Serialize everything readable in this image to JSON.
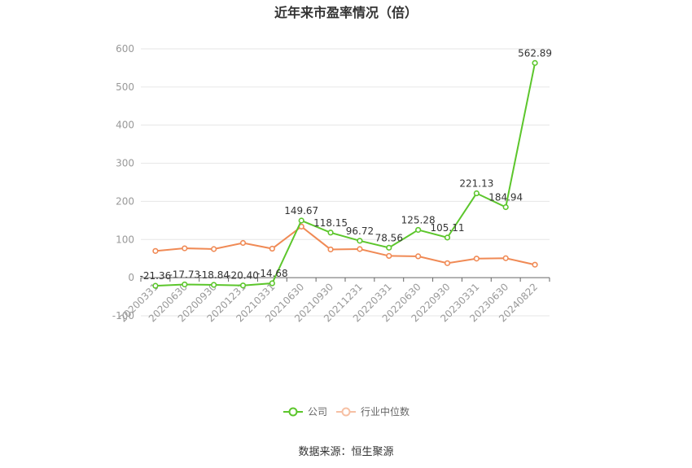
{
  "chart_data": {
    "type": "line",
    "title": "近年来市盈率情况（倍）",
    "x": [
      "20200331",
      "20200630",
      "20200930",
      "20201231",
      "20210331",
      "20210630",
      "20210930",
      "20211231",
      "20220331",
      "20220630",
      "20220930",
      "20230331",
      "20230630",
      "20240822"
    ],
    "ylim": [
      -100,
      600
    ],
    "yticks": [
      -100,
      0,
      100,
      200,
      300,
      400,
      500,
      600
    ],
    "grid": true,
    "legend_position": "bottom",
    "series": [
      {
        "name": "公司",
        "color": "#5CC62C",
        "values": [
          -21.36,
          -17.73,
          -18.84,
          -20.4,
          -14.68,
          149.67,
          118.15,
          96.72,
          78.56,
          125.28,
          105.11,
          221.13,
          184.94,
          562.89
        ],
        "labels": [
          "-21.36",
          "-17.73",
          "-18.84",
          "-20.40",
          "-14.68",
          "149.67",
          "118.15",
          "96.72",
          "78.56",
          "125.28",
          "105.11",
          "221.13",
          "184.94",
          "562.89"
        ]
      },
      {
        "name": "行业中位数",
        "color": "#F08A55",
        "values": [
          70,
          77,
          75,
          91,
          76,
          134,
          74,
          75,
          57,
          56,
          38,
          50,
          51,
          34
        ]
      }
    ],
    "source": "数据来源：恒生聚源"
  }
}
